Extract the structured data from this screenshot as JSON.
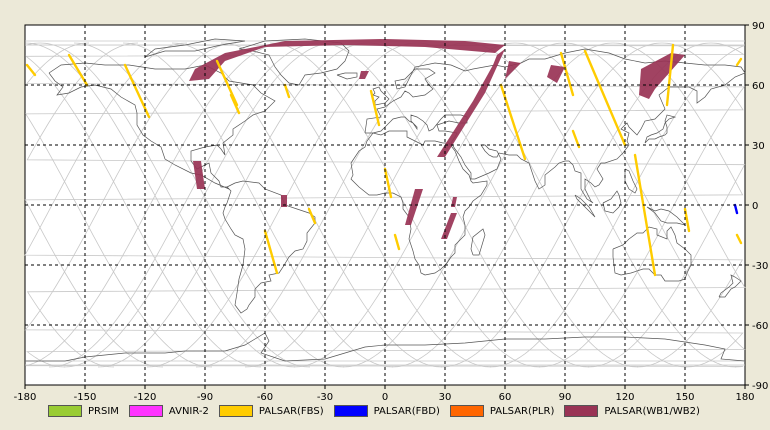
{
  "map": {
    "lon_ticks": [
      "-180",
      "-150",
      "-120",
      "-90",
      "-60",
      "-30",
      "0",
      "30",
      "60",
      "90",
      "120",
      "150",
      "180"
    ],
    "lat_ticks": [
      "90",
      "60",
      "30",
      "0",
      "-30",
      "-60",
      "-90"
    ],
    "colors": {
      "background": "#ffffff",
      "grid": "#000000",
      "coast": "#555555",
      "orbit": "#c8c8c8"
    }
  },
  "legend": {
    "items": [
      {
        "label": "PRSIM",
        "color": "#99cc33"
      },
      {
        "label": "AVNIR-2",
        "color": "#ff33ff"
      },
      {
        "label": "PALSAR(FBS)",
        "color": "#ffcc00"
      },
      {
        "label": "PALSAR(FBD)",
        "color": "#0000ff"
      },
      {
        "label": "PALSAR(PLR)",
        "color": "#ff6600"
      },
      {
        "label": "PALSAR(WB1/WB2)",
        "color": "#993355"
      }
    ]
  }
}
